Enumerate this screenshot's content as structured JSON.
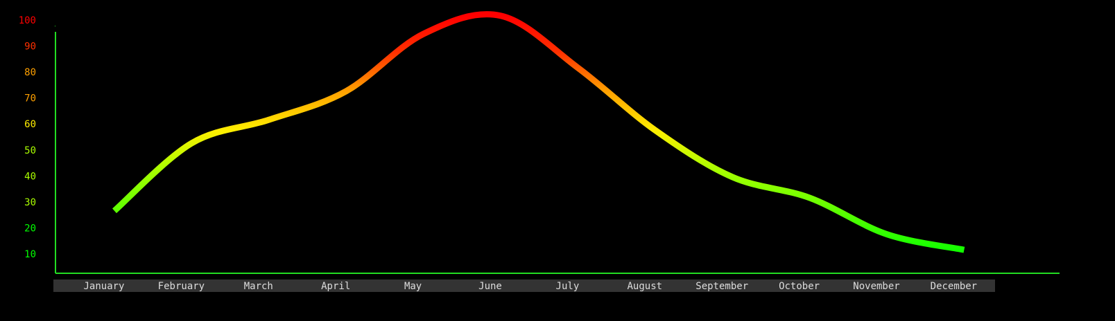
{
  "chart_data": {
    "type": "line",
    "categories": [
      "January",
      "February",
      "March",
      "April",
      "May",
      "June",
      "July",
      "August",
      "September",
      "October",
      "November",
      "December"
    ],
    "values": [
      29,
      55,
      64,
      75,
      97,
      104,
      84,
      60,
      42,
      34,
      20,
      14
    ],
    "ylim": [
      5,
      105
    ],
    "yticks": [
      10,
      20,
      30,
      40,
      50,
      60,
      70,
      80,
      90,
      100
    ],
    "color_scale": [
      {
        "value": 10,
        "color": "#00ff00"
      },
      {
        "value": 45,
        "color": "#aaff00"
      },
      {
        "value": 60,
        "color": "#ffee00"
      },
      {
        "value": 75,
        "color": "#ffa000"
      },
      {
        "value": 90,
        "color": "#ff3000"
      },
      {
        "value": 104,
        "color": "#ff0000"
      }
    ],
    "axis_color": "#22dd22"
  }
}
